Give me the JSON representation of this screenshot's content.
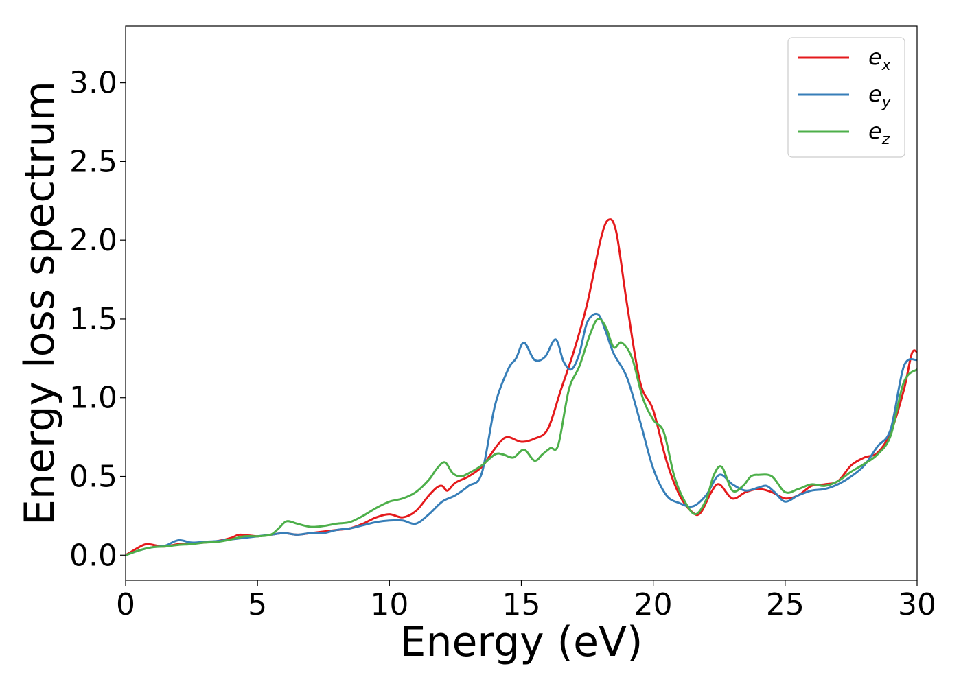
{
  "chart_data": {
    "type": "line",
    "xlabel": "Energy (eV)",
    "ylabel": "Energy loss spectrum",
    "xlim": [
      0,
      30
    ],
    "ylim": [
      -0.16,
      3.36
    ],
    "xticks": [
      0,
      5,
      10,
      15,
      20,
      25,
      30
    ],
    "xtick_labels": [
      "0",
      "5",
      "10",
      "15",
      "20",
      "25",
      "30"
    ],
    "yticks": [
      0.0,
      0.5,
      1.0,
      1.5,
      2.0,
      2.5,
      3.0
    ],
    "ytick_labels": [
      "0.0",
      "0.5",
      "1.0",
      "1.5",
      "2.0",
      "2.5",
      "3.0"
    ],
    "grid": false,
    "legend_position": "top-right",
    "series": [
      {
        "name": "e_x",
        "label_base": "e",
        "label_sub": "x",
        "color": "#e41a1c",
        "x": [
          0,
          0.5,
          0.8,
          1.2,
          1.5,
          2,
          2.5,
          3,
          3.5,
          4,
          4.3,
          4.7,
          5,
          5.5,
          6,
          6.5,
          7,
          7.5,
          8,
          8.5,
          9,
          9.5,
          10,
          10.5,
          11,
          11.5,
          11.8,
          12,
          12.2,
          12.5,
          13,
          13.5,
          13.8,
          14.2,
          14.5,
          15,
          15.5,
          16,
          16.5,
          17,
          17.5,
          18,
          18.3,
          18.6,
          19,
          19.5,
          20,
          20.5,
          21,
          21.5,
          21.8,
          22.2,
          22.5,
          23,
          23.5,
          24,
          24.5,
          25,
          25.5,
          26,
          26.5,
          27,
          27.5,
          28,
          28.5,
          29,
          29.5,
          29.8,
          30
        ],
        "y": [
          0.0,
          0.05,
          0.07,
          0.06,
          0.055,
          0.07,
          0.075,
          0.08,
          0.09,
          0.11,
          0.13,
          0.125,
          0.12,
          0.13,
          0.14,
          0.13,
          0.14,
          0.15,
          0.16,
          0.17,
          0.2,
          0.24,
          0.26,
          0.24,
          0.28,
          0.38,
          0.43,
          0.44,
          0.41,
          0.46,
          0.5,
          0.56,
          0.63,
          0.72,
          0.75,
          0.72,
          0.74,
          0.8,
          1.05,
          1.3,
          1.6,
          2.0,
          2.13,
          2.05,
          1.6,
          1.1,
          0.92,
          0.6,
          0.38,
          0.27,
          0.27,
          0.4,
          0.45,
          0.36,
          0.4,
          0.42,
          0.4,
          0.36,
          0.38,
          0.44,
          0.45,
          0.47,
          0.57,
          0.62,
          0.65,
          0.78,
          1.05,
          1.28,
          1.29
        ]
      },
      {
        "name": "e_y",
        "label_base": "e",
        "label_sub": "y",
        "color": "#377eb8",
        "x": [
          0,
          0.5,
          1,
          1.5,
          2,
          2.5,
          3,
          3.5,
          4,
          4.5,
          5,
          5.5,
          6,
          6.5,
          7,
          7.5,
          8,
          8.5,
          9,
          9.5,
          10,
          10.5,
          11,
          11.5,
          12,
          12.5,
          13,
          13.5,
          14,
          14.5,
          14.8,
          15.1,
          15.5,
          15.9,
          16.3,
          16.6,
          16.9,
          17.2,
          17.5,
          17.9,
          18.2,
          18.5,
          19,
          19.5,
          20,
          20.5,
          21,
          21.5,
          22,
          22.5,
          23,
          23.5,
          24,
          24.3,
          24.6,
          25,
          25.5,
          26,
          26.5,
          27,
          27.5,
          28,
          28.5,
          29,
          29.5,
          30
        ],
        "y": [
          0.0,
          0.03,
          0.05,
          0.06,
          0.095,
          0.08,
          0.085,
          0.09,
          0.1,
          0.11,
          0.12,
          0.13,
          0.14,
          0.13,
          0.14,
          0.14,
          0.16,
          0.17,
          0.19,
          0.21,
          0.22,
          0.22,
          0.2,
          0.26,
          0.34,
          0.38,
          0.44,
          0.52,
          0.95,
          1.18,
          1.25,
          1.35,
          1.24,
          1.26,
          1.37,
          1.23,
          1.18,
          1.28,
          1.48,
          1.53,
          1.42,
          1.28,
          1.13,
          0.85,
          0.55,
          0.38,
          0.33,
          0.31,
          0.38,
          0.51,
          0.45,
          0.41,
          0.43,
          0.44,
          0.4,
          0.34,
          0.38,
          0.41,
          0.42,
          0.45,
          0.5,
          0.57,
          0.69,
          0.8,
          1.2,
          1.24
        ]
      },
      {
        "name": "e_z",
        "label_base": "e",
        "label_sub": "z",
        "color": "#4daf4a",
        "x": [
          0,
          0.5,
          1,
          1.5,
          2,
          2.5,
          3,
          3.5,
          4,
          4.5,
          5,
          5.5,
          5.8,
          6.1,
          6.5,
          7,
          7.5,
          8,
          8.5,
          9,
          9.5,
          10,
          10.5,
          11,
          11.5,
          11.8,
          12.1,
          12.4,
          12.7,
          13,
          13.5,
          14,
          14.3,
          14.7,
          15.1,
          15.5,
          15.8,
          16.1,
          16.4,
          16.8,
          17.2,
          17.6,
          17.9,
          18.2,
          18.5,
          18.8,
          19.2,
          19.6,
          20,
          20.4,
          20.8,
          21.2,
          21.6,
          22,
          22.3,
          22.6,
          23,
          23.4,
          23.7,
          24,
          24.5,
          25,
          25.5,
          26,
          26.5,
          27,
          27.5,
          28,
          28.5,
          29,
          29.5,
          30
        ],
        "y": [
          0.0,
          0.03,
          0.05,
          0.055,
          0.065,
          0.07,
          0.08,
          0.085,
          0.1,
          0.12,
          0.12,
          0.13,
          0.17,
          0.215,
          0.2,
          0.18,
          0.185,
          0.2,
          0.21,
          0.25,
          0.3,
          0.34,
          0.36,
          0.4,
          0.48,
          0.55,
          0.59,
          0.52,
          0.5,
          0.52,
          0.57,
          0.64,
          0.64,
          0.62,
          0.67,
          0.6,
          0.64,
          0.68,
          0.7,
          1.05,
          1.2,
          1.4,
          1.5,
          1.45,
          1.32,
          1.35,
          1.25,
          1.0,
          0.86,
          0.78,
          0.5,
          0.34,
          0.26,
          0.35,
          0.51,
          0.56,
          0.41,
          0.44,
          0.5,
          0.51,
          0.5,
          0.4,
          0.42,
          0.45,
          0.44,
          0.47,
          0.53,
          0.58,
          0.64,
          0.76,
          1.1,
          1.18
        ]
      }
    ]
  }
}
